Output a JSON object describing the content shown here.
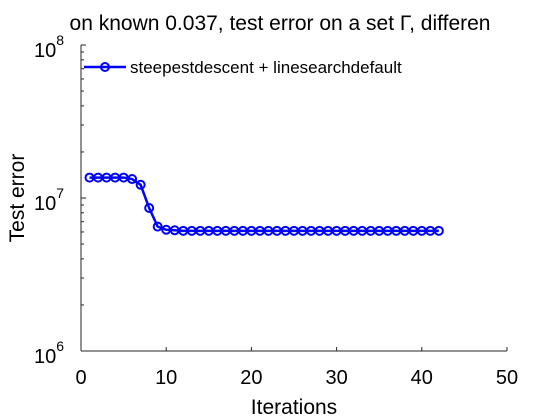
{
  "chart_data": {
    "type": "line",
    "title": "on known 0.037, test error on a set Γ, differen",
    "xlabel": "Iterations",
    "ylabel": "Test error",
    "xlim": [
      0,
      50
    ],
    "ylim": [
      1000000,
      100000000
    ],
    "yscale": "log",
    "grid": false,
    "legend_position": "top-left",
    "x_ticks": [
      0,
      10,
      20,
      30,
      40,
      50
    ],
    "y_ticks": [
      {
        "value": 1000000,
        "base": "10",
        "exp": "6"
      },
      {
        "value": 10000000,
        "base": "10",
        "exp": "7"
      },
      {
        "value": 100000000,
        "base": "10",
        "exp": "8"
      }
    ],
    "series": [
      {
        "name": "steepestdescent + linesearchdefault",
        "color": "#0000ff",
        "marker": "circle",
        "x": [
          1,
          2,
          3,
          4,
          5,
          6,
          7,
          8,
          9,
          10,
          11,
          12,
          13,
          14,
          15,
          16,
          17,
          18,
          19,
          20,
          21,
          22,
          23,
          24,
          25,
          26,
          27,
          28,
          29,
          30,
          31,
          32,
          33,
          34,
          35,
          36,
          37,
          38,
          39,
          40,
          41,
          42
        ],
        "values": [
          13600000,
          13600000,
          13600000,
          13600000,
          13600000,
          13300000,
          12200000,
          8600000,
          6500000,
          6200000,
          6150000,
          6100000,
          6100000,
          6100000,
          6100000,
          6100000,
          6100000,
          6100000,
          6100000,
          6100000,
          6100000,
          6100000,
          6100000,
          6100000,
          6100000,
          6100000,
          6100000,
          6100000,
          6100000,
          6100000,
          6100000,
          6100000,
          6100000,
          6100000,
          6100000,
          6100000,
          6100000,
          6100000,
          6100000,
          6100000,
          6100000,
          6100000
        ]
      }
    ]
  }
}
